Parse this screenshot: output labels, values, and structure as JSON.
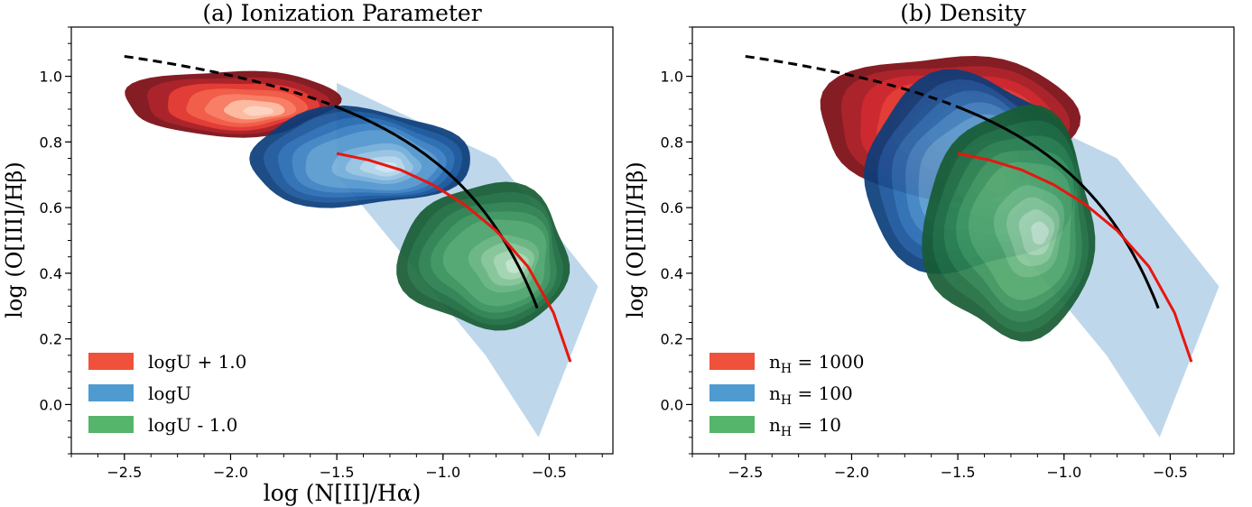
{
  "chart_data": [
    {
      "type": "contour",
      "title": "(a) Ionization Parameter",
      "xlabel": "log (N[II]/Hα)",
      "ylabel": "log (O[III]/Hβ)",
      "xlim": [
        -2.75,
        -0.2
      ],
      "ylim": [
        -0.15,
        1.15
      ],
      "xticks": [
        -2.5,
        -2.0,
        -1.5,
        -1.0,
        -0.5
      ],
      "xtick_labels": [
        "−2.5",
        "−2.0",
        "−1.5",
        "−1.0",
        "−0.5"
      ],
      "yticks": [
        0.0,
        0.2,
        0.4,
        0.6,
        0.8,
        1.0
      ],
      "ytick_labels": [
        "0.0",
        "0.2",
        "0.4",
        "0.6",
        "0.8",
        "1.0"
      ],
      "legend_position": "lower-left",
      "series": [
        {
          "name": "logU + 1.0",
          "color": "#f0513a",
          "cmap": "Reds",
          "center": [
            -2.0,
            0.92
          ],
          "radius": [
            0.5,
            0.1
          ],
          "levels": 7
        },
        {
          "name": "logU",
          "color": "#4f9bd0",
          "cmap": "Blues",
          "center": [
            -1.4,
            0.75
          ],
          "radius": [
            0.52,
            0.15
          ],
          "levels": 10
        },
        {
          "name": "logU - 1.0",
          "color": "#55b56a",
          "cmap": "Greens",
          "center": [
            -0.8,
            0.45
          ],
          "radius": [
            0.4,
            0.22
          ],
          "levels": 10
        }
      ],
      "grid_region": {
        "label": "photoionization grid",
        "points": [
          [
            -1.5,
            0.98
          ],
          [
            -0.75,
            0.75
          ],
          [
            -0.27,
            0.36
          ],
          [
            -0.55,
            -0.1
          ],
          [
            -0.8,
            0.15
          ],
          [
            -1.5,
            0.7
          ]
        ]
      },
      "red_curve": {
        "x": [
          -1.5,
          -1.35,
          -1.2,
          -1.05,
          -0.9,
          -0.75,
          -0.6,
          -0.48,
          -0.4
        ],
        "y": [
          0.765,
          0.745,
          0.715,
          0.67,
          0.61,
          0.53,
          0.42,
          0.28,
          0.13
        ]
      },
      "kauffmann_line": {
        "x_dashed": [
          -2.5,
          -1.5
        ],
        "x_solid": [
          -1.5,
          -0.556
        ],
        "formula": "0.61/(x-0.05)+1.3"
      }
    },
    {
      "type": "contour",
      "title": "(b) Density",
      "xlabel": "",
      "ylabel": "log (O[III]/Hβ)",
      "xlim": [
        -2.75,
        -0.2
      ],
      "ylim": [
        -0.15,
        1.15
      ],
      "xticks": [
        -2.5,
        -2.0,
        -1.5,
        -1.0,
        -0.5
      ],
      "xtick_labels": [
        "−2.5",
        "−2.0",
        "−1.5",
        "−1.0",
        "−0.5"
      ],
      "yticks": [
        0.0,
        0.2,
        0.4,
        0.6,
        0.8,
        1.0
      ],
      "ytick_labels": [
        "0.0",
        "0.2",
        "0.4",
        "0.6",
        "0.8",
        "1.0"
      ],
      "legend_position": "lower-left",
      "series": [
        {
          "name": "n",
          "sub": "H",
          "value": " = 1000",
          "color": "#f0513a",
          "cmap": "Reds",
          "center": [
            -1.55,
            0.85
          ],
          "radius": [
            0.6,
            0.22
          ],
          "levels": 9
        },
        {
          "name": "n",
          "sub": "H",
          "value": " = 100",
          "color": "#4f9bd0",
          "cmap": "Blues",
          "center": [
            -1.45,
            0.7
          ],
          "radius": [
            0.5,
            0.3
          ],
          "levels": 10
        },
        {
          "name": "n",
          "sub": "H",
          "value": " = 10",
          "color": "#55b56a",
          "cmap": "Greens",
          "center": [
            -1.25,
            0.55
          ],
          "radius": [
            0.4,
            0.35
          ],
          "levels": 10
        }
      ],
      "grid_region": {
        "label": "photoionization grid",
        "points": [
          [
            -1.5,
            0.98
          ],
          [
            -0.75,
            0.75
          ],
          [
            -0.27,
            0.36
          ],
          [
            -0.55,
            -0.1
          ],
          [
            -0.8,
            0.15
          ],
          [
            -1.5,
            0.7
          ]
        ]
      },
      "red_curve": {
        "x": [
          -1.5,
          -1.35,
          -1.2,
          -1.05,
          -0.9,
          -0.75,
          -0.6,
          -0.48,
          -0.4
        ],
        "y": [
          0.765,
          0.745,
          0.715,
          0.67,
          0.61,
          0.53,
          0.42,
          0.28,
          0.13
        ]
      },
      "kauffmann_line": {
        "x_dashed": [
          -2.5,
          -1.5
        ],
        "x_solid": [
          -1.5,
          -0.556
        ],
        "formula": "0.61/(x-0.05)+1.3"
      }
    }
  ]
}
